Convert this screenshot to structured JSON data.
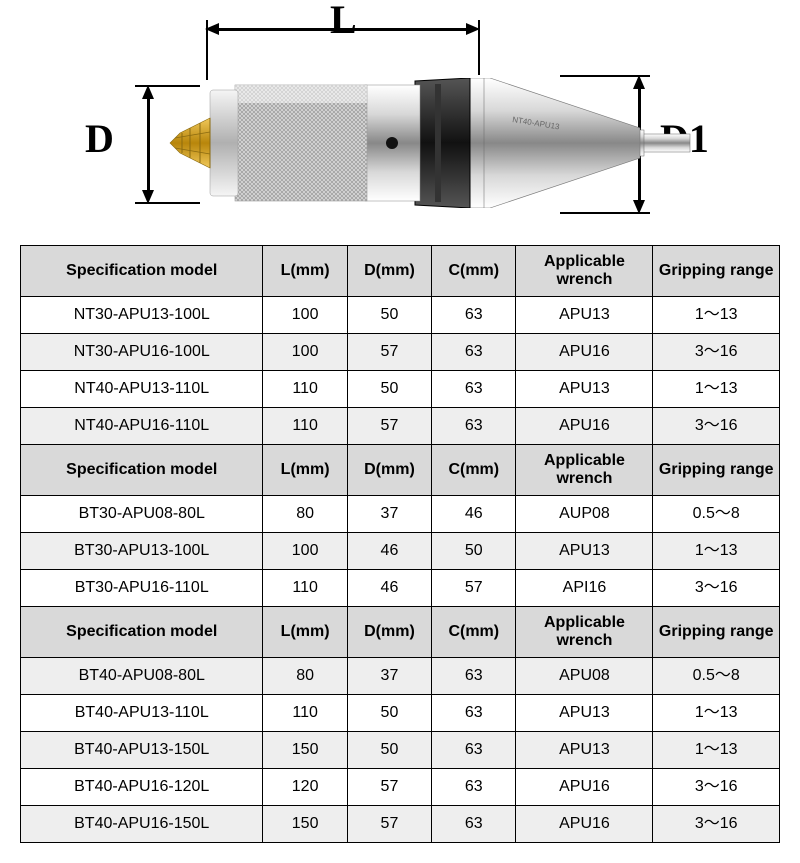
{
  "diagram": {
    "L_label": "L",
    "D_label": "D",
    "D1_label": "D1",
    "tool_label": "NT40-APU13"
  },
  "headers": {
    "model": "Specification model",
    "L": "L(mm)",
    "D": "D(mm)",
    "C": "C(mm)",
    "wrench": "Applicable wrench",
    "grip": "Gripping range"
  },
  "sections": [
    {
      "rows": [
        {
          "model": "NT30-APU13-100L",
          "L": "100",
          "D": "50",
          "C": "63",
          "wrench": "APU13",
          "grip": "1～13",
          "alt": false
        },
        {
          "model": "NT30-APU16-100L",
          "L": "100",
          "D": "57",
          "C": "63",
          "wrench": "APU16",
          "grip": "3～16",
          "alt": true
        },
        {
          "model": "NT40-APU13-110L",
          "L": "110",
          "D": "50",
          "C": "63",
          "wrench": "APU13",
          "grip": "1～13",
          "alt": false
        },
        {
          "model": "NT40-APU16-110L",
          "L": "110",
          "D": "57",
          "C": "63",
          "wrench": "APU16",
          "grip": "3～16",
          "alt": true
        }
      ]
    },
    {
      "rows": [
        {
          "model": "BT30-APU08-80L",
          "L": "80",
          "D": "37",
          "C": "46",
          "wrench": "AUP08",
          "grip": "0.5～8",
          "alt": false
        },
        {
          "model": "BT30-APU13-100L",
          "L": "100",
          "D": "46",
          "C": "50",
          "wrench": "APU13",
          "grip": "1～13",
          "alt": true
        },
        {
          "model": "BT30-APU16-110L",
          "L": "110",
          "D": "46",
          "C": "57",
          "wrench": "API16",
          "grip": "3～16",
          "alt": false
        }
      ]
    },
    {
      "rows": [
        {
          "model": "BT40-APU08-80L",
          "L": "80",
          "D": "37",
          "C": "63",
          "wrench": "APU08",
          "grip": "0.5～8",
          "alt": true
        },
        {
          "model": "BT40-APU13-110L",
          "L": "110",
          "D": "50",
          "C": "63",
          "wrench": "APU13",
          "grip": "1～13",
          "alt": false
        },
        {
          "model": "BT40-APU13-150L",
          "L": "150",
          "D": "50",
          "C": "63",
          "wrench": "APU13",
          "grip": "1～13",
          "alt": true
        },
        {
          "model": "BT40-APU16-120L",
          "L": "120",
          "D": "57",
          "C": "63",
          "wrench": "APU16",
          "grip": "3～16",
          "alt": false
        },
        {
          "model": "BT40-APU16-150L",
          "L": "150",
          "D": "57",
          "C": "63",
          "wrench": "APU16",
          "grip": "3～16",
          "alt": true
        }
      ]
    }
  ],
  "colors": {
    "header_bg": "#d9d9d9",
    "alt_bg": "#eeeeee",
    "border": "#000000"
  }
}
